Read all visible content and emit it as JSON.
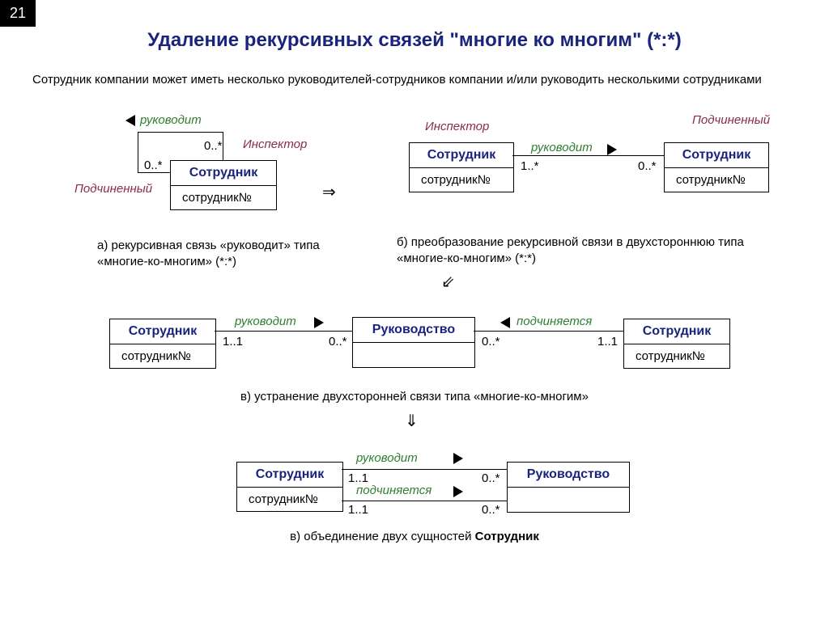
{
  "page_number": "21",
  "title": "Удаление рекурсивных связей \"многие ко многим\" (*:*)",
  "subtitle": "Сотрудник компании может иметь несколько руководителей-сотрудников компании и/или руководить несколькими сотрудниками",
  "colors": {
    "title": "#1a237e",
    "entity_title": "#1a237e",
    "green": "#2e7d32",
    "maroon": "#8b2a4a",
    "border": "#000000",
    "background": "#ffffff"
  },
  "labels": {
    "rukovodit": "руководит",
    "podchinyaetsya": "подчиняется",
    "inspector": "Инспектор",
    "subordinate": "Подчиненный",
    "sotrudnik": "Сотрудник",
    "sotrudnik_no": "сотрудник№",
    "rukovodstvo": "Руководство"
  },
  "multiplicities": {
    "zero_star": "0..*",
    "one_star": "1..*",
    "one_one": "1..1"
  },
  "captions": {
    "a": "а) рекурсивная связь «руководит» типа «многие-ко-многим»  (*:*)",
    "b": "б) преобразование рекурсивной связи в двухстороннюю типа «многие-ко-многим»  (*:*)",
    "c": "в) устранение двухсторонней связи типа «многие-ко-многим»",
    "d": "в) объединение двух сущностей Сотрудник"
  },
  "arrows": {
    "right": "⇒",
    "down_left": "⇙",
    "down": "⇓"
  }
}
